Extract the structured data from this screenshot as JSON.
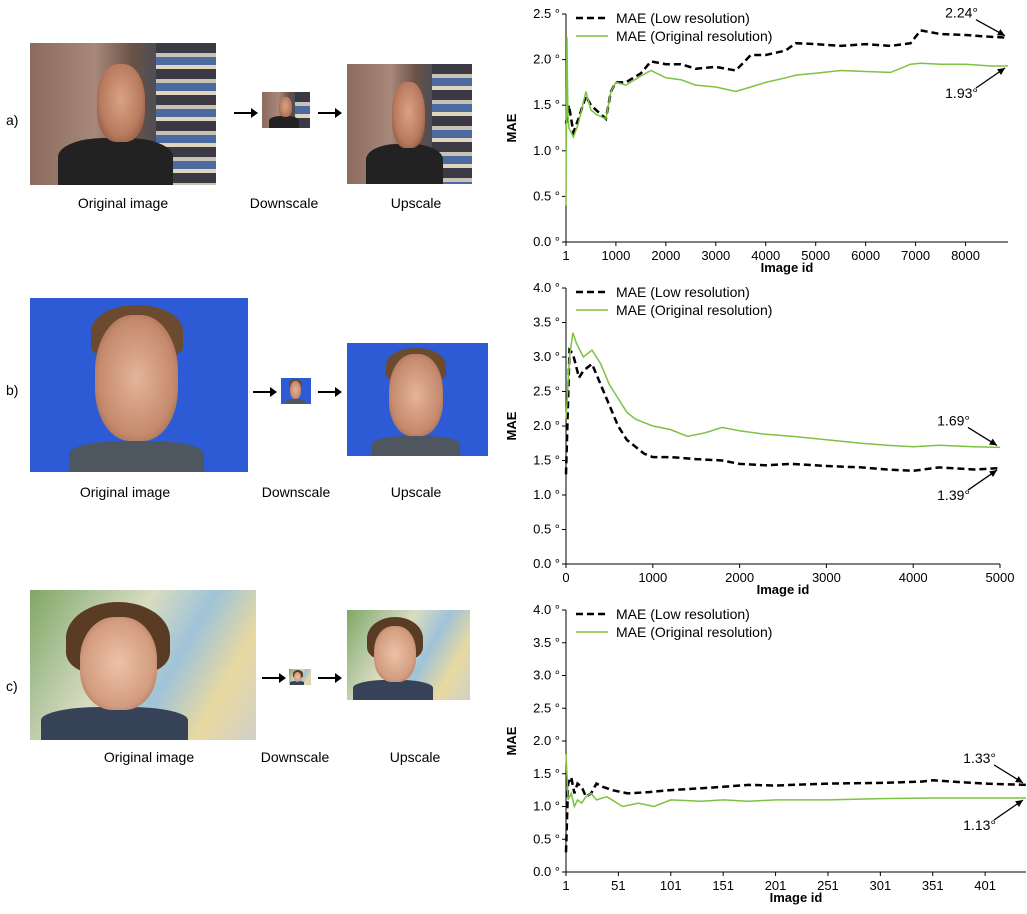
{
  "rows": [
    {
      "label": "a)",
      "captions": {
        "original": "Original image",
        "downscale": "Downscale",
        "upscale": "Upscale"
      }
    },
    {
      "label": "b)",
      "captions": {
        "original": "Original image",
        "downscale": "Downscale",
        "upscale": "Upscale"
      }
    },
    {
      "label": "c)",
      "captions": {
        "original": "Original image",
        "downscale": "Downscale",
        "upscale": "Upscale"
      }
    }
  ],
  "chart_data": [
    {
      "type": "line",
      "xlabel": "Image id",
      "ylabel": "MAE",
      "xlim": [
        1,
        8850
      ],
      "ylim": [
        0,
        2.5
      ],
      "yticks": [
        "0.0 °",
        "0.5 °",
        "1.0 °",
        "1.5 °",
        "2.0 °",
        "2.5 °"
      ],
      "yticks_values": [
        0,
        0.5,
        1.0,
        1.5,
        2.0,
        2.5
      ],
      "xticks": [
        "1",
        "1000",
        "2000",
        "3000",
        "4000",
        "5000",
        "6000",
        "7000",
        "8000"
      ],
      "xticks_values": [
        1,
        1000,
        2000,
        3000,
        4000,
        5000,
        6000,
        7000,
        8000
      ],
      "legend_position": "top-left",
      "series": [
        {
          "name": "MAE (Low resolution)",
          "style": "dashed",
          "color": "#000000",
          "x": [
            1,
            60,
            150,
            250,
            400,
            500,
            600,
            800,
            900,
            1000,
            1200,
            1500,
            1700,
            2000,
            2300,
            2600,
            3000,
            3400,
            3700,
            4000,
            4400,
            4600,
            5000,
            5500,
            6000,
            6500,
            6900,
            7100,
            7500,
            8000,
            8500,
            8850
          ],
          "y": [
            1.3,
            1.5,
            1.2,
            1.35,
            1.6,
            1.5,
            1.45,
            1.35,
            1.65,
            1.75,
            1.75,
            1.85,
            1.98,
            1.95,
            1.95,
            1.9,
            1.92,
            1.88,
            2.05,
            2.05,
            2.1,
            2.18,
            2.17,
            2.15,
            2.17,
            2.15,
            2.18,
            2.32,
            2.28,
            2.27,
            2.25,
            2.24
          ]
        },
        {
          "name": "MAE (Original resolution)",
          "style": "solid",
          "color": "#7dc242",
          "x": [
            1,
            20,
            40,
            60,
            150,
            250,
            400,
            500,
            600,
            800,
            900,
            1000,
            1200,
            1500,
            1700,
            2000,
            2300,
            2600,
            3000,
            3400,
            3700,
            4000,
            4400,
            4600,
            5000,
            5500,
            6000,
            6500,
            6900,
            7100,
            7500,
            8000,
            8500,
            8850
          ],
          "y": [
            0.4,
            2.25,
            1.4,
            1.25,
            1.15,
            1.3,
            1.65,
            1.45,
            1.4,
            1.35,
            1.65,
            1.75,
            1.72,
            1.82,
            1.88,
            1.8,
            1.78,
            1.72,
            1.7,
            1.65,
            1.7,
            1.75,
            1.8,
            1.83,
            1.85,
            1.88,
            1.87,
            1.86,
            1.95,
            1.96,
            1.95,
            1.95,
            1.93,
            1.93
          ]
        }
      ],
      "annotations": [
        {
          "text": "2.24°",
          "x": 8850,
          "y": 2.24
        },
        {
          "text": "1.93°",
          "x": 8850,
          "y": 1.93
        }
      ]
    },
    {
      "type": "line",
      "xlabel": "Image id",
      "ylabel": "MAE",
      "xlim": [
        0,
        5000
      ],
      "ylim": [
        0,
        4.0
      ],
      "yticks": [
        "0.0 °",
        "0.5 °",
        "1.0 °",
        "1.5 °",
        "2.0 °",
        "2.5 °",
        "3.0 °",
        "3.5 °",
        "4.0 °"
      ],
      "yticks_values": [
        0,
        0.5,
        1.0,
        1.5,
        2.0,
        2.5,
        3.0,
        3.5,
        4.0
      ],
      "xticks": [
        "0",
        "1000",
        "2000",
        "3000",
        "4000",
        "5000"
      ],
      "xticks_values": [
        0,
        1000,
        2000,
        3000,
        4000,
        5000
      ],
      "legend_position": "top-left",
      "series": [
        {
          "name": "MAE (Low resolution)",
          "style": "dashed",
          "color": "#000000",
          "x": [
            0,
            40,
            80,
            150,
            200,
            300,
            400,
            500,
            600,
            700,
            800,
            900,
            1000,
            1200,
            1500,
            1800,
            2000,
            2300,
            2600,
            3000,
            3400,
            3700,
            4000,
            4300,
            4700,
            5000
          ],
          "y": [
            1.3,
            3.1,
            3.05,
            2.7,
            2.8,
            2.9,
            2.6,
            2.3,
            2.0,
            1.8,
            1.7,
            1.6,
            1.55,
            1.55,
            1.52,
            1.5,
            1.45,
            1.43,
            1.45,
            1.42,
            1.4,
            1.37,
            1.35,
            1.4,
            1.37,
            1.39
          ]
        },
        {
          "name": "MAE (Original resolution)",
          "style": "solid",
          "color": "#7dc242",
          "x": [
            0,
            40,
            80,
            120,
            200,
            300,
            400,
            500,
            600,
            700,
            800,
            900,
            1000,
            1200,
            1400,
            1600,
            1800,
            2000,
            2300,
            2600,
            3000,
            3400,
            3700,
            4000,
            4300,
            4700,
            5000
          ],
          "y": [
            2.1,
            3.0,
            3.35,
            3.2,
            3.0,
            3.1,
            2.9,
            2.6,
            2.4,
            2.2,
            2.1,
            2.05,
            2.0,
            1.95,
            1.85,
            1.9,
            1.98,
            1.93,
            1.88,
            1.85,
            1.8,
            1.75,
            1.72,
            1.7,
            1.72,
            1.7,
            1.69
          ]
        }
      ],
      "annotations": [
        {
          "text": "1.69°",
          "x": 5000,
          "y": 1.69
        },
        {
          "text": "1.39°",
          "x": 5000,
          "y": 1.39
        }
      ]
    },
    {
      "type": "line",
      "xlabel": "Image id",
      "ylabel": "MAE",
      "xlim": [
        1,
        440
      ],
      "ylim": [
        0,
        4.0
      ],
      "yticks": [
        "0.0 °",
        "0.5 °",
        "1.0 °",
        "1.5 °",
        "2.0 °",
        "2.5 °",
        "3.0 °",
        "3.5 °",
        "4.0 °"
      ],
      "yticks_values": [
        0,
        0.5,
        1.0,
        1.5,
        2.0,
        2.5,
        3.0,
        3.5,
        4.0
      ],
      "xticks": [
        "1",
        "51",
        "101",
        "151",
        "201",
        "251",
        "301",
        "351",
        "401"
      ],
      "xticks_values": [
        1,
        51,
        101,
        151,
        201,
        251,
        301,
        351,
        401
      ],
      "legend_position": "top-left",
      "series": [
        {
          "name": "MAE (Low resolution)",
          "style": "dashed",
          "color": "#000000",
          "x": [
            1,
            3,
            6,
            9,
            12,
            16,
            20,
            25,
            30,
            36,
            45,
            60,
            80,
            101,
            130,
            151,
            175,
            201,
            251,
            301,
            340,
            351,
            380,
            401,
            440
          ],
          "y": [
            0.3,
            1.35,
            1.45,
            1.2,
            1.35,
            1.3,
            1.15,
            1.2,
            1.35,
            1.3,
            1.25,
            1.2,
            1.22,
            1.25,
            1.28,
            1.3,
            1.33,
            1.32,
            1.35,
            1.36,
            1.38,
            1.4,
            1.37,
            1.35,
            1.33
          ]
        },
        {
          "name": "MAE (Original resolution)",
          "style": "solid",
          "color": "#7dc242",
          "x": [
            1,
            3,
            6,
            9,
            12,
            16,
            20,
            25,
            30,
            40,
            55,
            70,
            85,
            101,
            130,
            151,
            175,
            201,
            251,
            301,
            351,
            401,
            440
          ],
          "y": [
            1.8,
            1.1,
            1.2,
            1.0,
            1.1,
            1.05,
            1.15,
            1.2,
            1.1,
            1.15,
            1.0,
            1.05,
            1.0,
            1.1,
            1.08,
            1.1,
            1.08,
            1.1,
            1.1,
            1.12,
            1.13,
            1.13,
            1.13
          ]
        }
      ],
      "annotations": [
        {
          "text": "1.33°",
          "x": 440,
          "y": 1.33
        },
        {
          "text": "1.13°",
          "x": 440,
          "y": 1.13
        }
      ]
    }
  ]
}
